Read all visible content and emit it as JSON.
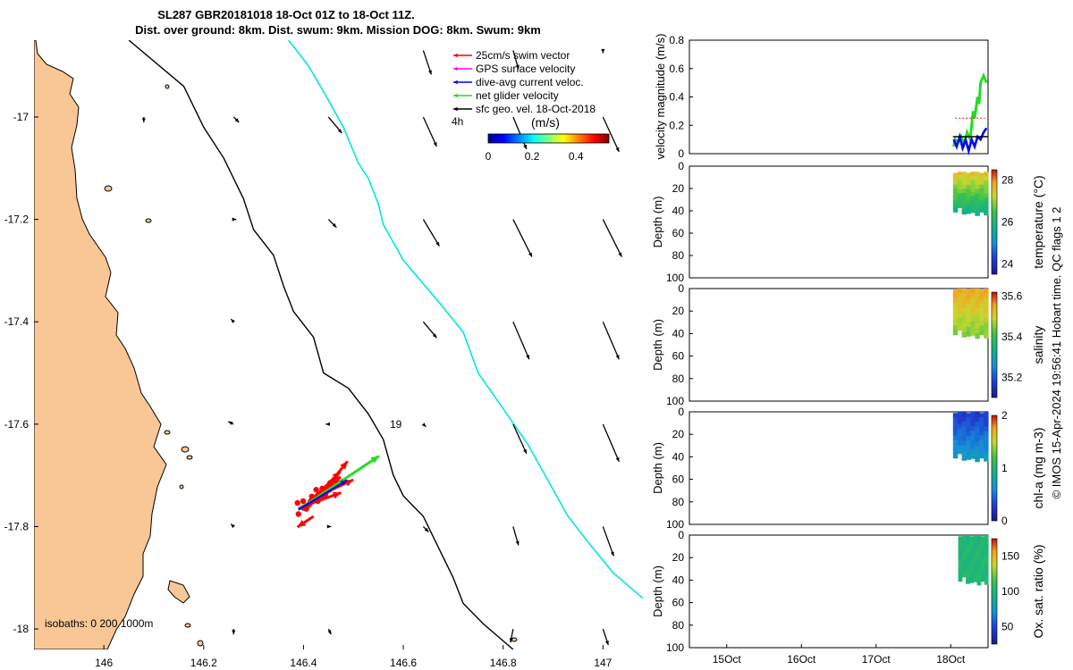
{
  "title": {
    "line1": "SL287 GBR20181018 18-Oct 01Z to 18-Oct 11Z.",
    "line2": "Dist. over ground: 8km. Dist. swum: 9km. Mission DOG: 8km. Swum: 9km"
  },
  "colors": {
    "land": "#f9c796",
    "gps_track": "#00e5e5",
    "swim": "#ff0000",
    "gps": "#ff00ff",
    "current": "#0000ff",
    "net": "#22dd22",
    "sfc": "#000000"
  },
  "chart_data": [
    {
      "type": "map",
      "name": "glider-track-map",
      "xlim": [
        145.86,
        147.08
      ],
      "ylim": [
        -18.04,
        -16.85
      ],
      "x_ticks": [
        "146",
        "146.2",
        "146.4",
        "146.6",
        "146.8",
        "147"
      ],
      "x_tick_values": [
        146,
        146.2,
        146.4,
        146.6,
        146.8,
        147
      ],
      "y_ticks": [
        "-17",
        "-17.2",
        "-17.4",
        "-17.6",
        "-17.8",
        "-18"
      ],
      "y_tick_values": [
        -17,
        -17.2,
        -17.4,
        -17.6,
        -17.8,
        -18
      ],
      "legend": [
        {
          "label": "25cm/s swim vector",
          "color_key": "swim"
        },
        {
          "label": "GPS surface velocity",
          "color_key": "gps"
        },
        {
          "label": "dive-avg current veloc.",
          "color_key": "current"
        },
        {
          "label": "net glider velocity",
          "color_key": "net"
        },
        {
          "label": "sfc geo. vel. 18-Oct-2018",
          "color_key": "sfc"
        }
      ],
      "duration_label": "4h",
      "colorbar": {
        "label": "(m/s)",
        "range": [
          0,
          0.55
        ],
        "ticks": [
          "0",
          "0.2",
          "0.4"
        ],
        "tick_values": [
          0,
          0.2,
          0.4
        ]
      },
      "isobaths_label": "isobaths: 0   200  1000m",
      "isobath_200m": [
        [
          146.05,
          -16.85
        ],
        [
          146.16,
          -16.94
        ],
        [
          146.2,
          -17.02
        ],
        [
          146.24,
          -17.08
        ],
        [
          146.28,
          -17.16
        ],
        [
          146.3,
          -17.22
        ],
        [
          146.34,
          -17.27
        ],
        [
          146.36,
          -17.33
        ],
        [
          146.38,
          -17.38
        ],
        [
          146.42,
          -17.43
        ],
        [
          146.44,
          -17.5
        ],
        [
          146.49,
          -17.53
        ],
        [
          146.53,
          -17.58
        ],
        [
          146.56,
          -17.63
        ],
        [
          146.58,
          -17.7
        ],
        [
          146.6,
          -17.74
        ],
        [
          146.64,
          -17.78
        ],
        [
          146.67,
          -17.84
        ],
        [
          146.7,
          -17.9
        ],
        [
          146.72,
          -17.95
        ],
        [
          146.76,
          -17.99
        ],
        [
          146.82,
          -18.04
        ]
      ],
      "isobath_1000m": [
        [
          146.37,
          -16.85
        ],
        [
          146.41,
          -16.9
        ],
        [
          146.44,
          -16.95
        ],
        [
          146.48,
          -17.02
        ],
        [
          146.51,
          -17.09
        ],
        [
          146.53,
          -17.12
        ],
        [
          146.55,
          -17.17
        ],
        [
          146.56,
          -17.21
        ],
        [
          146.6,
          -17.28
        ],
        [
          146.67,
          -17.36
        ],
        [
          146.72,
          -17.42
        ],
        [
          146.75,
          -17.5
        ],
        [
          146.8,
          -17.57
        ],
        [
          146.85,
          -17.64
        ],
        [
          146.89,
          -17.71
        ],
        [
          146.93,
          -17.78
        ],
        [
          146.97,
          -17.83
        ],
        [
          147.02,
          -17.89
        ],
        [
          147.08,
          -17.94
        ]
      ],
      "geostrophic_vectors": [
        {
          "lon": 146.64,
          "lat": -16.87,
          "u": 0.03,
          "v": -0.09
        },
        {
          "lon": 146.82,
          "lat": -16.87,
          "u": 0.02,
          "v": -0.07
        },
        {
          "lon": 147.0,
          "lat": -16.87,
          "u": 0.0,
          "v": -0.01
        },
        {
          "lon": 146.08,
          "lat": -17.0,
          "u": 0.0,
          "v": -0.02
        },
        {
          "lon": 146.26,
          "lat": -17.0,
          "u": 0.02,
          "v": -0.02
        },
        {
          "lon": 146.45,
          "lat": -17.0,
          "u": 0.05,
          "v": -0.06
        },
        {
          "lon": 146.64,
          "lat": -17.0,
          "u": 0.05,
          "v": -0.11
        },
        {
          "lon": 146.82,
          "lat": -17.0,
          "u": 0.05,
          "v": -0.12
        },
        {
          "lon": 147.0,
          "lat": -17.0,
          "u": 0.06,
          "v": -0.13
        },
        {
          "lon": 146.26,
          "lat": -17.2,
          "u": 0.01,
          "v": 0.0
        },
        {
          "lon": 146.45,
          "lat": -17.2,
          "u": 0.03,
          "v": -0.03
        },
        {
          "lon": 146.64,
          "lat": -17.2,
          "u": 0.06,
          "v": -0.1
        },
        {
          "lon": 146.82,
          "lat": -17.2,
          "u": 0.07,
          "v": -0.14
        },
        {
          "lon": 147.0,
          "lat": -17.2,
          "u": 0.07,
          "v": -0.14
        },
        {
          "lon": 146.26,
          "lat": -17.4,
          "u": -0.01,
          "v": 0.01
        },
        {
          "lon": 146.64,
          "lat": -17.4,
          "u": 0.05,
          "v": -0.06
        },
        {
          "lon": 146.82,
          "lat": -17.4,
          "u": 0.06,
          "v": -0.14
        },
        {
          "lon": 147.0,
          "lat": -17.4,
          "u": 0.06,
          "v": -0.14
        },
        {
          "lon": 146.26,
          "lat": -17.6,
          "u": -0.02,
          "v": 0.01
        },
        {
          "lon": 146.45,
          "lat": -17.6,
          "u": -0.01,
          "v": 0.0
        },
        {
          "lon": 146.64,
          "lat": -17.6,
          "u": 0.01,
          "v": -0.01
        },
        {
          "lon": 146.82,
          "lat": -17.6,
          "u": 0.05,
          "v": -0.11
        },
        {
          "lon": 147.0,
          "lat": -17.6,
          "u": 0.06,
          "v": -0.14
        },
        {
          "lon": 146.26,
          "lat": -17.8,
          "u": -0.01,
          "v": 0.01
        },
        {
          "lon": 146.45,
          "lat": -17.8,
          "u": 0.01,
          "v": 0.0
        },
        {
          "lon": 146.64,
          "lat": -17.8,
          "u": 0.02,
          "v": -0.02
        },
        {
          "lon": 146.82,
          "lat": -17.8,
          "u": 0.02,
          "v": -0.07
        },
        {
          "lon": 147.0,
          "lat": -17.8,
          "u": 0.04,
          "v": -0.11
        },
        {
          "lon": 146.26,
          "lat": -18.0,
          "u": 0.0,
          "v": -0.02
        },
        {
          "lon": 146.45,
          "lat": -18.0,
          "u": 0.01,
          "v": -0.02
        },
        {
          "lon": 146.82,
          "lat": -18.0,
          "u": -0.01,
          "v": -0.05
        },
        {
          "lon": 147.0,
          "lat": -18.0,
          "u": 0.02,
          "v": -0.06
        }
      ],
      "swim_vectors": [
        {
          "lon": 146.39,
          "lat": -17.765,
          "u": 0.12,
          "v": 0.07
        },
        {
          "lon": 146.4,
          "lat": -17.76,
          "u": 0.14,
          "v": 0.05
        },
        {
          "lon": 146.41,
          "lat": -17.75,
          "u": 0.12,
          "v": 0.09
        },
        {
          "lon": 146.42,
          "lat": -17.745,
          "u": 0.1,
          "v": 0.1
        },
        {
          "lon": 146.43,
          "lat": -17.74,
          "u": 0.13,
          "v": 0.06
        },
        {
          "lon": 146.44,
          "lat": -17.73,
          "u": 0.09,
          "v": 0.11
        },
        {
          "lon": 146.41,
          "lat": -17.76,
          "u": 0.13,
          "v": 0.1
        },
        {
          "lon": 146.42,
          "lat": -17.78,
          "u": -0.06,
          "v": -0.04
        }
      ],
      "current_vector": {
        "lon": 146.39,
        "lat": -17.767,
        "u": 0.18,
        "v": 0.11
      },
      "net_vector": {
        "lon": 146.39,
        "lat": -17.767,
        "u": 0.3,
        "v": 0.2
      },
      "annotation": "19"
    },
    {
      "type": "line",
      "name": "velocity-magnitude",
      "ylabel": "velocity magnitude (m/s)",
      "ylim": [
        0,
        0.8
      ],
      "y_ticks": [
        "0",
        "0.2",
        "0.4",
        "0.6",
        "0.8"
      ],
      "y_tick_values": [
        0,
        0.2,
        0.4,
        0.6,
        0.8
      ],
      "xlim": [
        14.5,
        18.5
      ],
      "series": [
        {
          "name": "net glider velocity",
          "color_key": "net",
          "x": [
            18.04,
            18.06,
            18.1,
            18.14,
            18.18,
            18.22,
            18.26,
            18.3,
            18.32,
            18.36,
            18.38,
            18.4,
            18.44,
            18.48
          ],
          "y": [
            0.05,
            0.1,
            0.08,
            0.12,
            0.07,
            0.15,
            0.1,
            0.3,
            0.25,
            0.4,
            0.35,
            0.5,
            0.55,
            0.5
          ]
        },
        {
          "name": "dive-avg current veloc.",
          "color_key": "current",
          "x": [
            18.04,
            18.08,
            18.12,
            18.16,
            18.2,
            18.24,
            18.28,
            18.32,
            18.36,
            18.4,
            18.44,
            18.48
          ],
          "y": [
            0.1,
            0.05,
            0.12,
            0.04,
            0.1,
            0.02,
            0.1,
            0.05,
            0.12,
            0.1,
            0.15,
            0.18
          ]
        },
        {
          "name": "swim",
          "color_key": "swim",
          "x": [
            18.06,
            18.46
          ],
          "y": [
            0.25,
            0.25
          ]
        }
      ]
    },
    {
      "type": "heatmap",
      "name": "temperature-section",
      "ylabel": "Depth (m)",
      "ylim": [
        100,
        0
      ],
      "y_ticks": [
        "0",
        "20",
        "40",
        "60",
        "80",
        "100"
      ],
      "y_tick_values": [
        0,
        20,
        40,
        60,
        80,
        100
      ],
      "xlim": [
        14.5,
        18.5
      ],
      "data_x_range": [
        18.03,
        18.5
      ],
      "data_depth_range": [
        5,
        45
      ],
      "colorbar": {
        "label": "temperature (°C)",
        "range": [
          23.5,
          28.5
        ],
        "ticks": [
          "24",
          "26",
          "28"
        ],
        "tick_values": [
          24,
          26,
          28
        ]
      },
      "profile": {
        "surface": 27.6,
        "bottom": 25.6
      }
    },
    {
      "type": "heatmap",
      "name": "salinity-section",
      "ylabel": "Depth (m)",
      "ylim": [
        100,
        0
      ],
      "y_ticks": [
        "0",
        "20",
        "40",
        "60",
        "80",
        "100"
      ],
      "y_tick_values": [
        0,
        20,
        40,
        60,
        80,
        100
      ],
      "xlim": [
        14.5,
        18.5
      ],
      "data_x_range": [
        18.03,
        18.5
      ],
      "data_depth_range": [
        0,
        45
      ],
      "colorbar": {
        "label": "salinity",
        "range": [
          35.1,
          35.62
        ],
        "ticks": [
          "35.2",
          "35.4",
          "35.6"
        ],
        "tick_values": [
          35.2,
          35.4,
          35.6
        ]
      },
      "profile": {
        "surface": 35.55,
        "bottom": 35.44
      }
    },
    {
      "type": "heatmap",
      "name": "chla-section",
      "ylabel": "Depth (m)",
      "ylim": [
        100,
        0
      ],
      "y_ticks": [
        "0",
        "20",
        "40",
        "60",
        "80",
        "100"
      ],
      "y_tick_values": [
        0,
        20,
        40,
        60,
        80,
        100
      ],
      "xlim": [
        14.5,
        18.5
      ],
      "data_x_range": [
        18.03,
        18.5
      ],
      "data_depth_range": [
        0,
        45
      ],
      "colorbar": {
        "label": "chl-a (mg m-3)",
        "range": [
          0,
          2
        ],
        "ticks": [
          "0",
          "1",
          "2"
        ],
        "tick_values": [
          0,
          1,
          2
        ]
      },
      "profile": {
        "surface": 0.25,
        "bottom": 0.75
      }
    },
    {
      "type": "heatmap",
      "name": "oxygen-section",
      "ylabel": "Depth (m)",
      "ylim": [
        100,
        0
      ],
      "y_ticks": [
        "0",
        "20",
        "40",
        "60",
        "80",
        "100"
      ],
      "y_tick_values": [
        0,
        20,
        40,
        60,
        80,
        100
      ],
      "xlim": [
        14.5,
        18.5
      ],
      "data_x_range": [
        18.1,
        18.5
      ],
      "data_depth_range": [
        0,
        45
      ],
      "x_ticks": [
        "15Oct",
        "16Oct",
        "17Oct",
        "18Oct"
      ],
      "x_tick_values": [
        15,
        16,
        17,
        18
      ],
      "colorbar": {
        "label": "Ox. sat. ratio (%)",
        "range": [
          25,
          175
        ],
        "ticks": [
          "50",
          "100",
          "150"
        ],
        "tick_values": [
          50,
          100,
          150
        ]
      },
      "profile": {
        "surface": 100,
        "bottom": 101
      }
    }
  ],
  "footer": {
    "credit": "© IMOS 15-Apr-2024 19:56:41 Hobart time. QC flags 1  2"
  }
}
